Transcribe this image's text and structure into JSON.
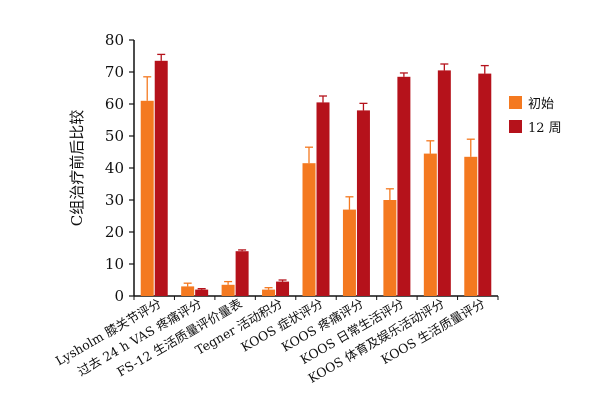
{
  "chart_data": {
    "type": "bar",
    "ylabel": "C组治疗前后比较",
    "ylim": [
      0,
      80
    ],
    "yticks": [
      0,
      10,
      20,
      30,
      40,
      50,
      60,
      70,
      80
    ],
    "categories": [
      "Lysholm 膝关节评分",
      "过去 24 h VAS 疼痛评分",
      "FS-12 生活质量评价量表",
      "Tegner 活动积分",
      "KOOS 症状评分",
      "KOOS 疼痛评分",
      "KOOS 日常生活评分",
      "KOOS 体育及娱乐活动评分",
      "KOOS 生活质量评分"
    ],
    "series": [
      {
        "name": "初始",
        "color": "#f47920",
        "values": [
          61,
          3,
          3.5,
          2,
          41.5,
          27,
          30,
          44.5,
          43.5
        ],
        "errors": [
          7.5,
          1,
          1,
          0.6,
          5,
          4,
          3.5,
          4,
          5.5
        ]
      },
      {
        "name": "12 周",
        "color": "#b5121b",
        "values": [
          73.5,
          2,
          14,
          4.5,
          60.5,
          58,
          68.5,
          70.5,
          69.5
        ],
        "errors": [
          2,
          0.3,
          0.4,
          0.5,
          2,
          2.2,
          1.2,
          2,
          2.5
        ]
      }
    ],
    "legend": "right"
  }
}
